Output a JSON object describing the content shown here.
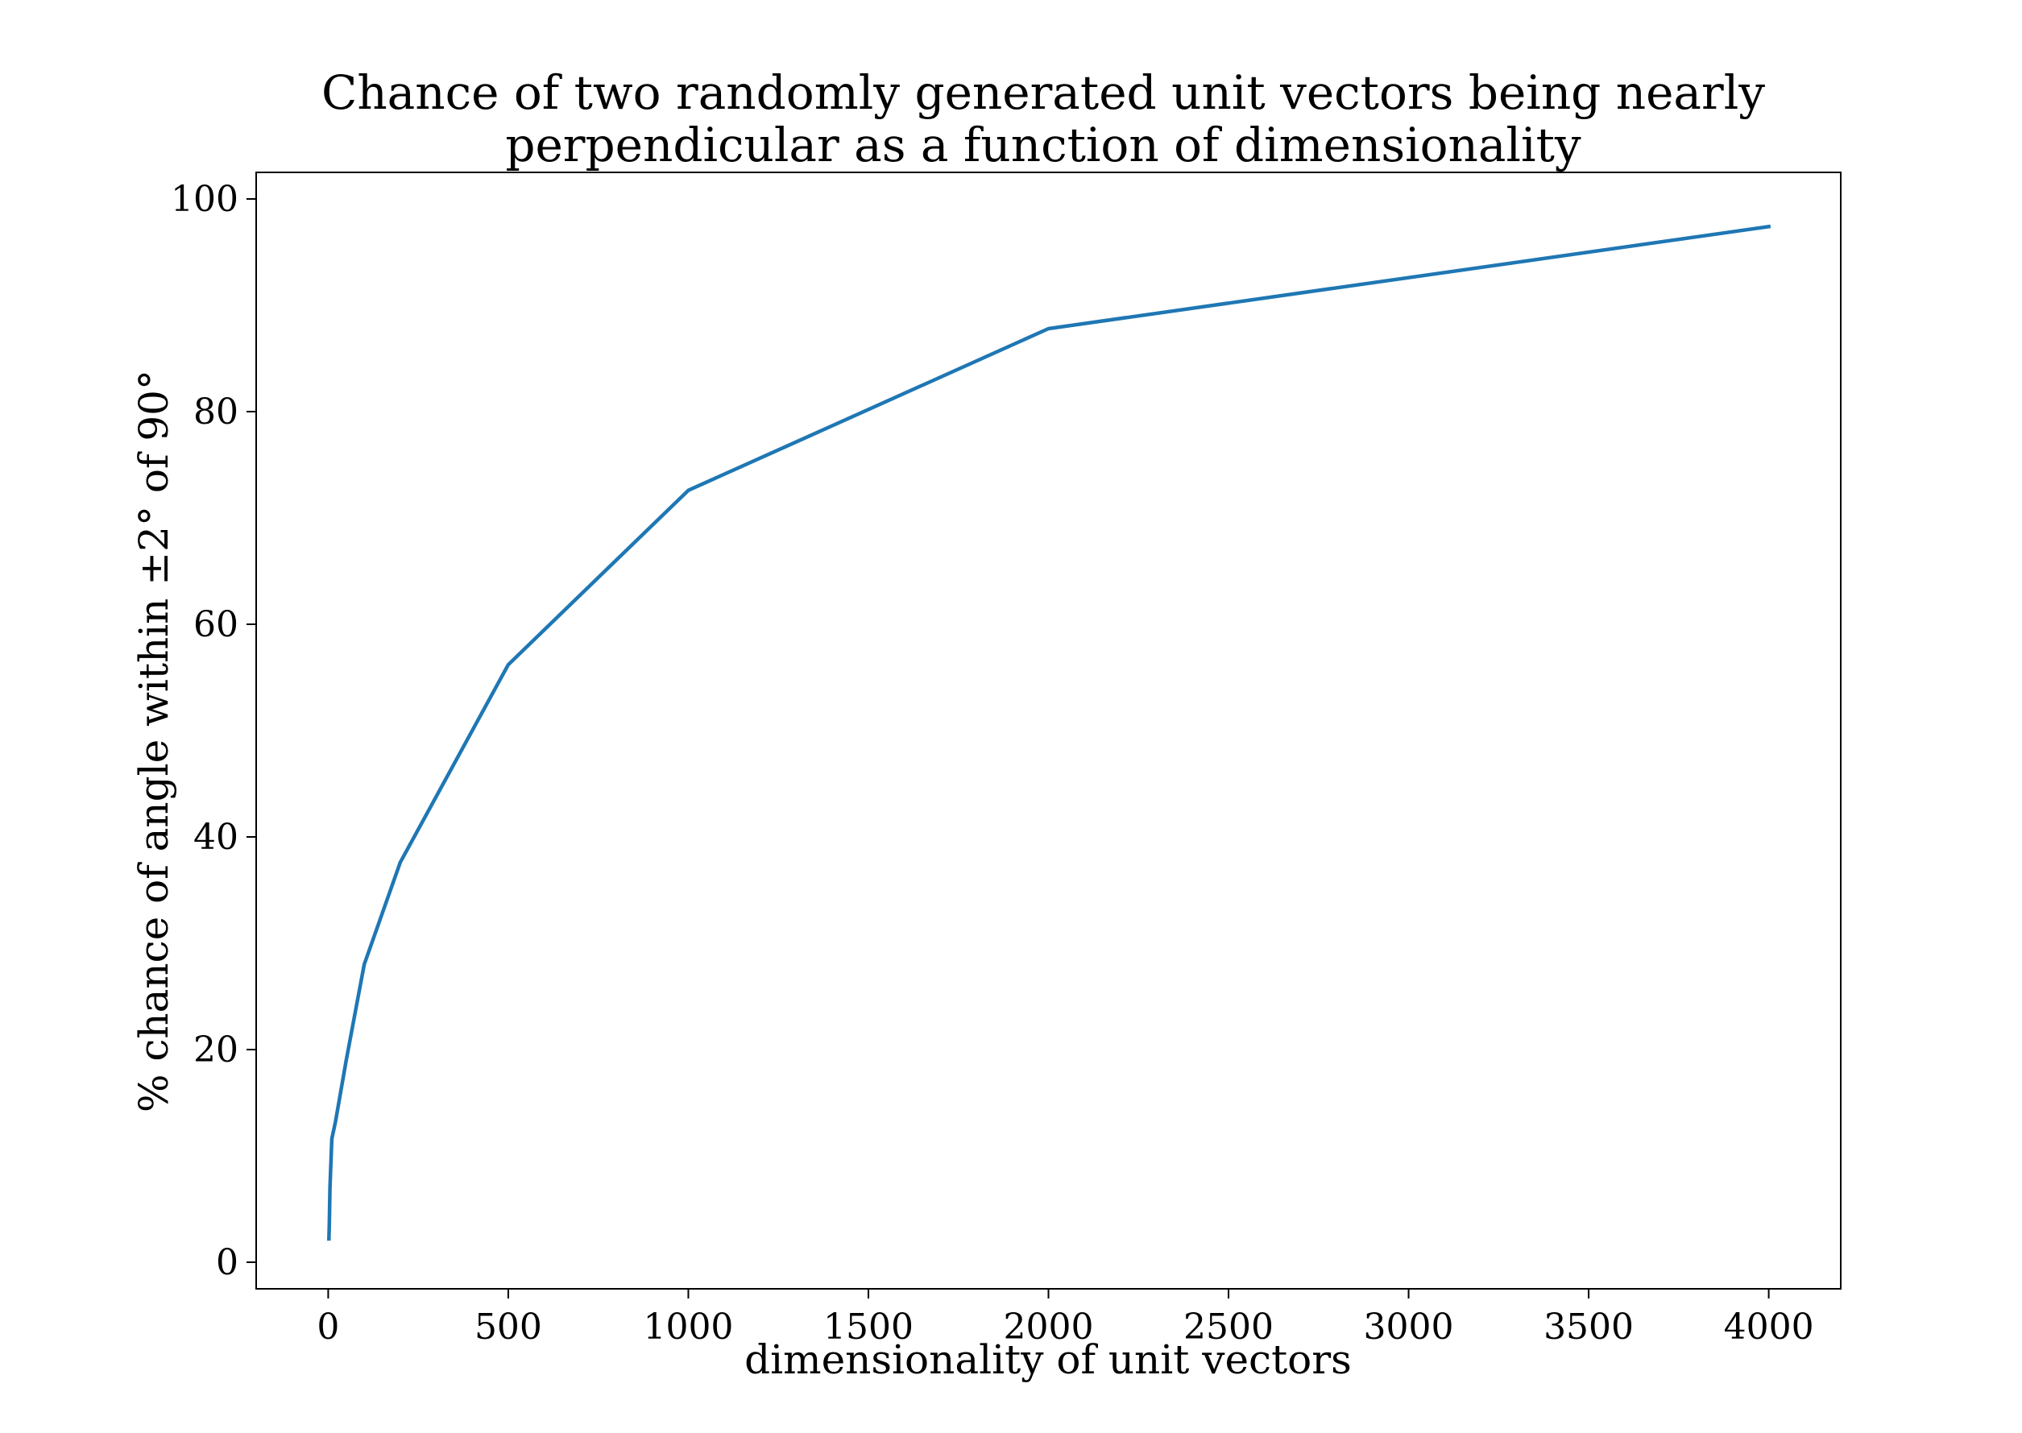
{
  "chart_data": {
    "type": "line",
    "title": "Chance of two randomly generated unit vectors being nearly perpendicular as a function of dimensionality",
    "title_lines": [
      "Chance of two randomly generated unit vectors being nearly",
      "perpendicular as a function of dimensionality"
    ],
    "xlabel": "dimensionality of unit vectors",
    "ylabel": "% chance of angle within ±2° of 90°",
    "xlim": [
      -200,
      4200
    ],
    "ylim": [
      -2.5,
      102.5
    ],
    "x_ticks": [
      0,
      500,
      1000,
      1500,
      2000,
      2500,
      3000,
      3500,
      4000
    ],
    "y_ticks": [
      0,
      20,
      40,
      60,
      80,
      100
    ],
    "grid": false,
    "legend": "none",
    "series": [
      {
        "color": "#1f77b4",
        "x": [
          2,
          3,
          5,
          10,
          20,
          50,
          100,
          200,
          500,
          1000,
          2000,
          4000
        ],
        "values": [
          2.2,
          3.6,
          7.0,
          11.6,
          13.2,
          19.0,
          28.0,
          37.6,
          56.2,
          72.6,
          87.8,
          97.4
        ]
      }
    ]
  }
}
